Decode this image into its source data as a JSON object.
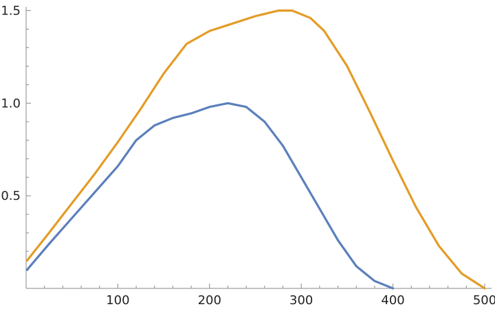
{
  "chart_data": {
    "type": "line",
    "title": "",
    "xlabel": "",
    "ylabel": "",
    "xlim": [
      0,
      500
    ],
    "ylim": [
      0,
      1.52
    ],
    "grid": false,
    "x_ticks": [
      100,
      200,
      300,
      400,
      500
    ],
    "x_tick_labels": [
      "100",
      "200",
      "300",
      "400",
      "500"
    ],
    "y_ticks": [
      0.5,
      1.0,
      1.5
    ],
    "y_tick_labels": [
      "0.5",
      "1.0",
      "1.5"
    ],
    "series": [
      {
        "color": "#5b7fbb",
        "x": [
          1,
          25,
          50,
          75,
          100,
          120,
          140,
          160,
          180,
          200,
          220,
          240,
          260,
          280,
          300,
          320,
          340,
          360,
          380,
          400
        ],
        "y": [
          0.1,
          0.24,
          0.38,
          0.52,
          0.66,
          0.8,
          0.88,
          0.92,
          0.945,
          0.98,
          1.0,
          0.98,
          0.9,
          0.77,
          0.6,
          0.43,
          0.26,
          0.12,
          0.04,
          0.0
        ]
      },
      {
        "color": "#e39c27",
        "x": [
          1,
          25,
          50,
          75,
          100,
          125,
          150,
          175,
          200,
          225,
          250,
          275,
          290,
          310,
          325,
          350,
          375,
          400,
          425,
          450,
          475,
          500
        ],
        "y": [
          0.15,
          0.3,
          0.46,
          0.62,
          0.79,
          0.97,
          1.16,
          1.32,
          1.39,
          1.43,
          1.47,
          1.5,
          1.5,
          1.46,
          1.39,
          1.2,
          0.95,
          0.69,
          0.44,
          0.23,
          0.08,
          0.0
        ]
      }
    ]
  }
}
